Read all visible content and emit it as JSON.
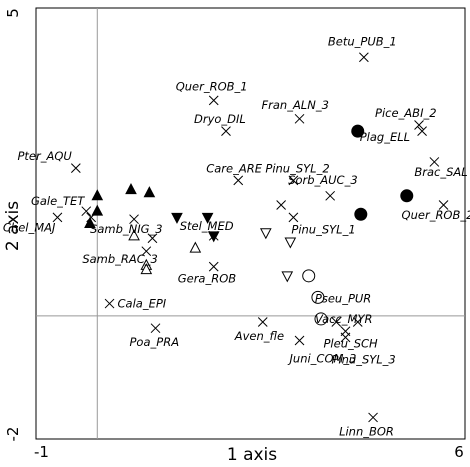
{
  "chart_data": {
    "type": "scatter",
    "title": "",
    "xlabel": "1 axis",
    "ylabel": "2 axis",
    "xlim": [
      -1,
      6
    ],
    "ylim": [
      -2,
      5
    ],
    "xticks": [
      "-1",
      "6"
    ],
    "yticks": [
      "5",
      "-2"
    ],
    "grid": false,
    "reference_lines": {
      "x": 0,
      "y": 0
    },
    "marker_types": [
      "cross",
      "filled-circle",
      "open-circle",
      "filled-triangle-up",
      "open-triangle-up",
      "filled-triangle-down",
      "open-triangle-down"
    ],
    "points": [
      {
        "x": -0.35,
        "y": 2.4,
        "marker": "cross",
        "label": "Pter_AQU"
      },
      {
        "x": -0.65,
        "y": 1.6,
        "marker": "cross",
        "label": "Chel_MAJ"
      },
      {
        "x": -0.18,
        "y": 1.7,
        "marker": "cross",
        "label": "Gale_TET"
      },
      {
        "x": -0.12,
        "y": 1.5,
        "marker": "filled-triangle-up",
        "label": ""
      },
      {
        "x": 0.0,
        "y": 1.95,
        "marker": "filled-triangle-up",
        "label": ""
      },
      {
        "x": 0.0,
        "y": 1.7,
        "marker": "filled-triangle-up",
        "label": ""
      },
      {
        "x": -0.1,
        "y": 1.6,
        "marker": "cross",
        "label": ""
      },
      {
        "x": 0.55,
        "y": 2.05,
        "marker": "filled-triangle-up",
        "label": ""
      },
      {
        "x": 0.85,
        "y": 2.0,
        "marker": "filled-triangle-up",
        "label": ""
      },
      {
        "x": 0.6,
        "y": 1.3,
        "marker": "open-triangle-up",
        "label": ""
      },
      {
        "x": 0.6,
        "y": 1.57,
        "marker": "cross",
        "label": "Samb_NIG_3"
      },
      {
        "x": 0.9,
        "y": 1.26,
        "marker": "cross",
        "label": ""
      },
      {
        "x": 0.8,
        "y": 1.05,
        "marker": "cross",
        "label": "Samb_RAC_3"
      },
      {
        "x": 0.8,
        "y": 0.82,
        "marker": "open-triangle-up",
        "label": ""
      },
      {
        "x": 0.8,
        "y": 0.75,
        "marker": "open-triangle-up",
        "label": ""
      },
      {
        "x": 1.6,
        "y": 1.1,
        "marker": "open-triangle-up",
        "label": ""
      },
      {
        "x": 1.3,
        "y": 1.6,
        "marker": "filled-triangle-down",
        "label": ""
      },
      {
        "x": 1.8,
        "y": 1.6,
        "marker": "filled-triangle-down",
        "label": ""
      },
      {
        "x": 1.9,
        "y": 1.3,
        "marker": "filled-triangle-down",
        "label": "Stel_MED"
      },
      {
        "x": 1.9,
        "y": 1.3,
        "marker": "cross",
        "label": ""
      },
      {
        "x": 1.9,
        "y": 0.8,
        "marker": "cross",
        "label": "Gera_ROB"
      },
      {
        "x": 2.3,
        "y": 2.2,
        "marker": "cross",
        "label": "Care_ARE"
      },
      {
        "x": 1.9,
        "y": 3.5,
        "marker": "cross",
        "label": "Quer_ROB_1"
      },
      {
        "x": 2.1,
        "y": 3.0,
        "marker": "cross",
        "label": "Dryo_DIL"
      },
      {
        "x": 3.3,
        "y": 3.2,
        "marker": "cross",
        "label": "Fran_ALN_3"
      },
      {
        "x": 4.35,
        "y": 4.2,
        "marker": "cross",
        "label": "Betu_PUB_1"
      },
      {
        "x": 4.25,
        "y": 3.0,
        "marker": "filled-circle",
        "label": "Plag_ELL"
      },
      {
        "x": 5.25,
        "y": 3.1,
        "marker": "cross",
        "label": "Pice_ABI_2"
      },
      {
        "x": 5.3,
        "y": 3.0,
        "marker": "cross",
        "label": ""
      },
      {
        "x": 5.5,
        "y": 2.5,
        "marker": "cross",
        "label": "Brac_SAL"
      },
      {
        "x": 3.2,
        "y": 2.2,
        "marker": "cross",
        "label": "Pinu_SYL_2"
      },
      {
        "x": 3.8,
        "y": 1.95,
        "marker": "cross",
        "label": "Sorb_AUC_3"
      },
      {
        "x": 4.3,
        "y": 1.65,
        "marker": "filled-circle",
        "label": ""
      },
      {
        "x": 5.05,
        "y": 1.95,
        "marker": "filled-circle",
        "label": ""
      },
      {
        "x": 5.65,
        "y": 1.8,
        "marker": "cross",
        "label": "Quer_ROB_2"
      },
      {
        "x": 3.0,
        "y": 1.8,
        "marker": "cross",
        "label": ""
      },
      {
        "x": 3.2,
        "y": 1.6,
        "marker": "cross",
        "label": "Pinu_SYL_1"
      },
      {
        "x": 2.75,
        "y": 1.35,
        "marker": "open-triangle-down",
        "label": ""
      },
      {
        "x": 3.15,
        "y": 1.2,
        "marker": "open-triangle-down",
        "label": ""
      },
      {
        "x": 3.1,
        "y": 0.65,
        "marker": "open-triangle-down",
        "label": ""
      },
      {
        "x": 3.45,
        "y": 0.65,
        "marker": "open-circle",
        "label": ""
      },
      {
        "x": 3.6,
        "y": 0.3,
        "marker": "open-circle",
        "label": "Pseu_PUR"
      },
      {
        "x": 3.65,
        "y": -0.05,
        "marker": "open-circle",
        "label": "Vacc_MYR"
      },
      {
        "x": 2.7,
        "y": -0.1,
        "marker": "cross",
        "label": "Aven_fle"
      },
      {
        "x": 3.3,
        "y": -0.4,
        "marker": "cross",
        "label": "Juni_COM_3"
      },
      {
        "x": 4.05,
        "y": -0.25,
        "marker": "cross",
        "label": "Pleu_SCH"
      },
      {
        "x": 4.05,
        "y": -0.35,
        "marker": "cross",
        "label": "Pinu_SYL_3"
      },
      {
        "x": 3.9,
        "y": -0.1,
        "marker": "cross",
        "label": ""
      },
      {
        "x": 4.25,
        "y": -0.1,
        "marker": "cross",
        "label": ""
      },
      {
        "x": 0.2,
        "y": 0.2,
        "marker": "cross",
        "label": "Cala_EPI"
      },
      {
        "x": 0.95,
        "y": -0.2,
        "marker": "cross",
        "label": "Poa_PRA"
      },
      {
        "x": 4.5,
        "y": -1.65,
        "marker": "cross",
        "label": "Linn_BOR"
      }
    ]
  }
}
